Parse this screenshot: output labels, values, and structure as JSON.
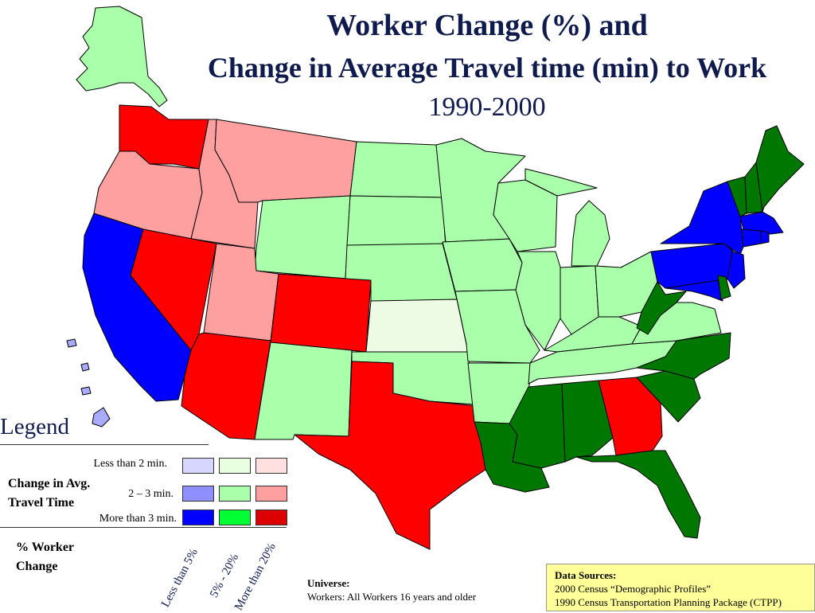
{
  "title": {
    "line1": "Worker Change (%) and",
    "line2": "Change in Average Travel time (min) to Work",
    "line3": "1990-2000"
  },
  "colors": {
    "lt2_lt5": "#d6d6ff",
    "lt2_5to20": "#e8ffe0",
    "lt2_gt20": "#ffe0e0",
    "m2to3_lt5": "#8f8fff",
    "m2to3_5to20": "#aaffaa",
    "m2to3_gt20": "#ffa0a0",
    "gt3_lt5": "#0000ff",
    "gt3_5to20": "#00ff33",
    "gt3_gt20": "#dd0000",
    "map_green_dark": "#007700",
    "map_green_light": "#aaffaa",
    "map_red": "#ff0000",
    "map_pink": "#ffa0a0",
    "map_blue": "#0000ff",
    "map_kansas": "#eefbe4",
    "map_islands": "#aaaaff"
  },
  "legend": {
    "title": "Legend",
    "group_label_line1": "Change in Avg.",
    "group_label_line2": "Travel Time",
    "rows": [
      "Less than 2 min.",
      "2 – 3 min.",
      "More than 3 min."
    ],
    "worker_label_line1": "% Worker",
    "worker_label_line2": "Change",
    "columns": [
      "Less than 5%",
      "5% - 20%",
      "More than 20%"
    ]
  },
  "universe": {
    "label": "Universe:",
    "text": "Workers: All Workers 16 years and older"
  },
  "sources": {
    "label": "Data Sources:",
    "line1": "2000 Census “Demographic Profiles”",
    "line2": "1990 Census Transportation Planning Package (CTPP)"
  }
}
